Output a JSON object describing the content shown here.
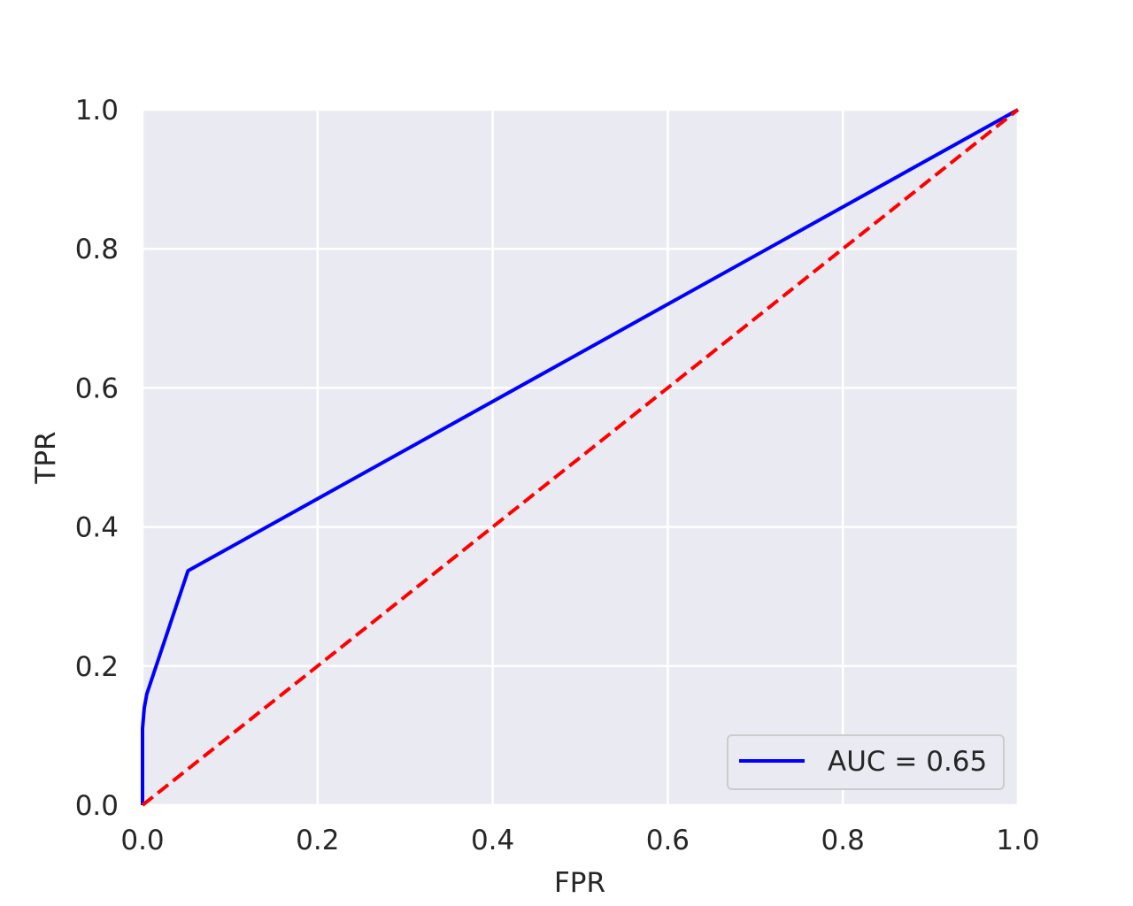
{
  "chart_data": {
    "type": "line",
    "title": "",
    "xlabel": "FPR",
    "ylabel": "TPR",
    "xlim": [
      0.0,
      1.0
    ],
    "ylim": [
      0.0,
      1.0
    ],
    "xticks": [
      "0.0",
      "0.2",
      "0.4",
      "0.6",
      "0.8",
      "1.0"
    ],
    "yticks": [
      "0.0",
      "0.2",
      "0.4",
      "0.6",
      "0.8",
      "1.0"
    ],
    "grid": true,
    "legend_position": "lower-right",
    "series": [
      {
        "name": "AUC = 0.65",
        "color": "#0000ff",
        "style": "solid",
        "x": [
          0.0,
          0.0,
          0.0,
          0.002,
          0.005,
          0.052,
          1.0
        ],
        "y": [
          0.0,
          0.05,
          0.11,
          0.14,
          0.16,
          0.337,
          1.0
        ]
      },
      {
        "name": "",
        "color": "#ff0000",
        "style": "dashed",
        "x": [
          0.0,
          1.0
        ],
        "y": [
          0.0,
          1.0
        ]
      }
    ],
    "colors": {
      "plot_background": "#eaeaf2",
      "grid": "#ffffff",
      "text": "#262626"
    }
  }
}
